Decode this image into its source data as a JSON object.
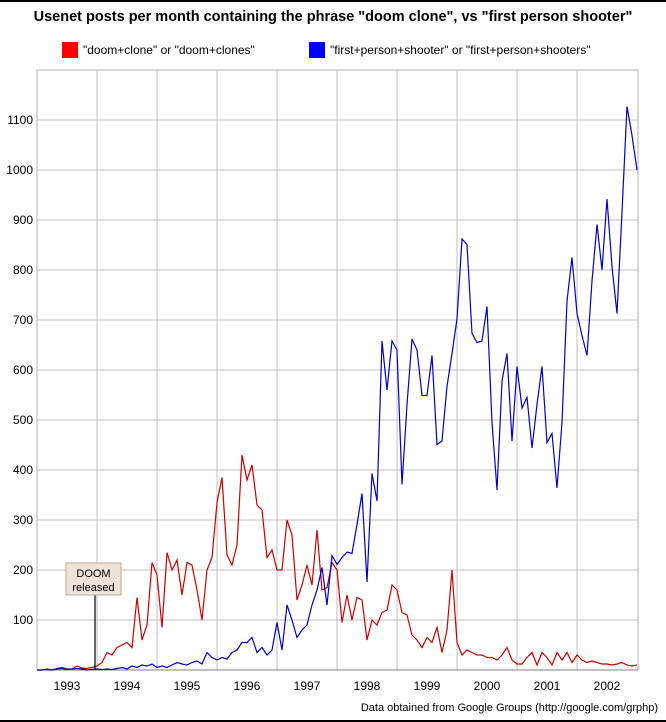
{
  "chart_data": {
    "type": "line",
    "title": "Usenet posts per month containing the phrase \"doom clone\", vs \"first person shooter\"",
    "xlabel": "",
    "ylabel": "",
    "x_start_month": "1993-01",
    "x_interval": "month",
    "x_tick_labels": [
      "1993",
      "1994",
      "1995",
      "1996",
      "1997",
      "1998",
      "1999",
      "2000",
      "2001",
      "2002"
    ],
    "y_ticks": [
      100,
      200,
      300,
      400,
      500,
      600,
      700,
      800,
      900,
      1000,
      1100
    ],
    "ylim": [
      0,
      1200
    ],
    "grid": true,
    "legend_position": "top",
    "series": [
      {
        "name": "\"doom+clone\" or \"doom+clones\"",
        "color": "#ff0000",
        "line_color": "#cc0000",
        "values": [
          0,
          0,
          2,
          0,
          3,
          5,
          2,
          2,
          8,
          4,
          3,
          5,
          8,
          15,
          35,
          30,
          45,
          50,
          55,
          45,
          145,
          60,
          90,
          215,
          190,
          85,
          235,
          200,
          220,
          150,
          215,
          210,
          160,
          100,
          200,
          225,
          335,
          385,
          230,
          210,
          250,
          430,
          380,
          410,
          330,
          320,
          225,
          240,
          200,
          200,
          300,
          270,
          140,
          170,
          210,
          170,
          280,
          160,
          165,
          215,
          200,
          95,
          150,
          100,
          145,
          140,
          60,
          100,
          90,
          115,
          120,
          170,
          160,
          115,
          110,
          70,
          60,
          45,
          65,
          55,
          85,
          35,
          80,
          200,
          55,
          30,
          40,
          35,
          30,
          30,
          25,
          25,
          20,
          30,
          45,
          20,
          12,
          12,
          25,
          35,
          10,
          35,
          25,
          10,
          35,
          20,
          35,
          15,
          30,
          20,
          15,
          18,
          15,
          12,
          12,
          10,
          12,
          15,
          10,
          8,
          10
        ]
      },
      {
        "name": "\"first+person+shooter\" or \"first+person+shooters\"",
        "color": "#0000ff",
        "line_color": "#0000cc",
        "values": [
          0,
          0,
          1,
          0,
          2,
          3,
          1,
          2,
          3,
          2,
          0,
          1,
          2,
          1,
          2,
          1,
          3,
          5,
          2,
          8,
          5,
          10,
          8,
          12,
          5,
          8,
          5,
          10,
          15,
          12,
          10,
          15,
          18,
          12,
          35,
          25,
          20,
          25,
          22,
          35,
          40,
          55,
          55,
          65,
          35,
          45,
          30,
          40,
          95,
          40,
          130,
          100,
          65,
          80,
          90,
          130,
          160,
          205,
          130,
          229,
          211,
          225,
          236,
          233,
          291,
          353,
          176,
          393,
          338,
          658,
          560,
          658,
          640,
          371,
          531,
          662,
          640,
          549,
          549,
          629,
          451,
          458,
          567,
          633,
          702,
          862,
          851,
          673,
          655,
          658,
          727,
          495,
          360,
          578,
          633,
          458,
          607,
          524,
          545,
          444,
          531,
          607,
          455,
          473,
          364,
          495,
          738,
          825,
          713,
          669,
          629,
          778,
          891,
          800,
          942,
          807,
          713,
          916,
          1127,
          1069,
          1000
        ]
      }
    ],
    "annotations": [
      {
        "text_line1": "DOOM",
        "text_line2": "released",
        "x_month": "1993-12"
      }
    ]
  },
  "footer": "Data obtained from Google Groups (http://google.com/grphp)"
}
